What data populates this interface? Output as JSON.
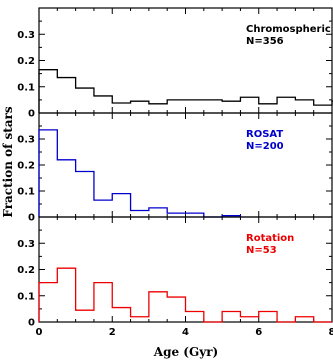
{
  "chart_data": [
    {
      "type": "histogram",
      "label_line1": "Chromospheric",
      "label_line2": "N=356",
      "color": "#000000",
      "xlim": [
        0,
        8
      ],
      "ylim": [
        0,
        0.4
      ],
      "yticks": [
        "0",
        "0.1",
        "0.2",
        "0.3"
      ],
      "bin_width": 0.5,
      "values": [
        0.165,
        0.135,
        0.095,
        0.065,
        0.038,
        0.045,
        0.035,
        0.05,
        0.05,
        0.05,
        0.045,
        0.06,
        0.035,
        0.06,
        0.05,
        0.03,
        0.045
      ]
    },
    {
      "type": "histogram",
      "label_line1": "ROSAT",
      "label_line2": "N=200",
      "color": "#0000cc",
      "xlim": [
        0,
        8
      ],
      "ylim": [
        0,
        0.4
      ],
      "yticks": [
        "0",
        "0.1",
        "0.2",
        "0.3"
      ],
      "bin_width": 0.5,
      "values": [
        0.335,
        0.22,
        0.175,
        0.065,
        0.09,
        0.025,
        0.035,
        0.015,
        0.015,
        0.0,
        0.005
      ]
    },
    {
      "type": "histogram",
      "label_line1": "Rotation",
      "label_line2": "N=53",
      "color": "#ee0000",
      "xlim": [
        0,
        8
      ],
      "ylim": [
        0,
        0.4
      ],
      "yticks": [
        "0",
        "0.1",
        "0.2",
        "0.3"
      ],
      "xticks": [
        "0",
        "2",
        "4",
        "6",
        "8"
      ],
      "bin_width": 0.5,
      "values": [
        0.15,
        0.205,
        0.045,
        0.15,
        0.055,
        0.02,
        0.115,
        0.095,
        0.04,
        0.0,
        0.04,
        0.02,
        0.04,
        0.0,
        0.02,
        0.0
      ]
    }
  ],
  "xlabel": "Age (Gyr)",
  "ylabel": "Fraction of stars"
}
